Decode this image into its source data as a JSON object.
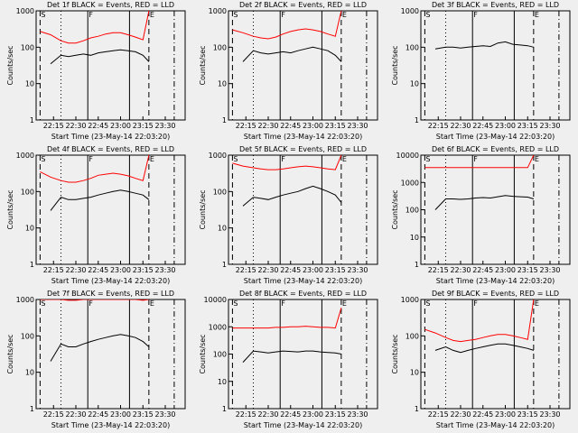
{
  "axes": {
    "xlabel": "Start Time (23-May-14 22:03:20)",
    "ylabel": "Counts/sec",
    "xlim": [
      3.33,
      103.33
    ],
    "xticks": [
      {
        "value": 15,
        "label": "22:15"
      },
      {
        "value": 30,
        "label": "22:30"
      },
      {
        "value": 45,
        "label": "22:45"
      },
      {
        "value": 60,
        "label": "23:00"
      },
      {
        "value": 75,
        "label": "23:15"
      },
      {
        "value": 90,
        "label": "23:30"
      }
    ],
    "log_y": true,
    "markers": [
      {
        "x": 6,
        "style": "dashed",
        "label": "S"
      },
      {
        "x": 20,
        "style": "dotted"
      },
      {
        "x": 38,
        "style": "solid",
        "label": "F"
      },
      {
        "x": 66,
        "style": "solid"
      },
      {
        "x": 79,
        "style": "dashed",
        "label": "E"
      },
      {
        "x": 96,
        "style": "dashdot"
      }
    ]
  },
  "chart_data": [
    {
      "type": "line",
      "title": "Det 1f BLACK = Events, RED = LLD",
      "ylim": [
        1,
        1000
      ],
      "yticks": [
        1,
        10,
        100,
        1000
      ],
      "x": [
        6,
        13,
        20,
        25,
        30,
        35,
        40,
        45,
        50,
        55,
        60,
        65,
        70,
        75,
        79
      ],
      "series": [
        {
          "color": "#000000",
          "values": [
            null,
            35,
            60,
            55,
            60,
            65,
            60,
            70,
            75,
            80,
            85,
            80,
            75,
            60,
            40
          ]
        },
        {
          "color": "#ff0000",
          "values": [
            270,
            220,
            150,
            130,
            130,
            150,
            180,
            200,
            230,
            250,
            250,
            220,
            190,
            160,
            1000
          ]
        }
      ]
    },
    {
      "type": "line",
      "title": "Det 2f BLACK = Events, RED = LLD",
      "ylim": [
        1,
        1000
      ],
      "yticks": [
        1,
        10,
        100,
        1000
      ],
      "x": [
        6,
        13,
        20,
        25,
        30,
        35,
        40,
        45,
        50,
        55,
        60,
        65,
        70,
        75,
        79
      ],
      "series": [
        {
          "color": "#000000",
          "values": [
            null,
            40,
            80,
            70,
            65,
            70,
            75,
            70,
            80,
            90,
            100,
            90,
            80,
            60,
            40
          ]
        },
        {
          "color": "#ff0000",
          "values": [
            300,
            250,
            200,
            180,
            170,
            190,
            230,
            270,
            300,
            320,
            300,
            270,
            230,
            200,
            1000
          ]
        }
      ]
    },
    {
      "type": "line",
      "title": "Det 3f BLACK = Events, RED = LLD",
      "ylim": [
        1,
        1000
      ],
      "yticks": [
        1,
        10,
        100,
        1000
      ],
      "x": [
        6,
        13,
        20,
        25,
        30,
        35,
        40,
        45,
        50,
        55,
        60,
        65,
        70,
        75,
        79
      ],
      "series": [
        {
          "color": "#000000",
          "values": [
            null,
            90,
            100,
            100,
            95,
            100,
            105,
            110,
            105,
            130,
            140,
            120,
            115,
            110,
            100
          ]
        }
      ]
    },
    {
      "type": "line",
      "title": "Det 4f BLACK = Events, RED = LLD",
      "ylim": [
        1,
        1000
      ],
      "yticks": [
        1,
        10,
        100,
        1000
      ],
      "x": [
        6,
        13,
        20,
        25,
        30,
        35,
        40,
        45,
        50,
        55,
        60,
        65,
        70,
        75,
        79
      ],
      "series": [
        {
          "color": "#000000",
          "values": [
            null,
            30,
            70,
            60,
            60,
            65,
            70,
            80,
            90,
            100,
            110,
            100,
            90,
            80,
            60
          ]
        },
        {
          "color": "#ff0000",
          "values": [
            350,
            250,
            200,
            180,
            180,
            200,
            230,
            280,
            300,
            320,
            300,
            270,
            230,
            200,
            1000
          ]
        }
      ]
    },
    {
      "type": "line",
      "title": "Det 5f BLACK = Events, RED = LLD",
      "ylim": [
        1,
        1000
      ],
      "yticks": [
        1,
        10,
        100,
        1000
      ],
      "x": [
        6,
        13,
        20,
        25,
        30,
        35,
        40,
        45,
        50,
        55,
        60,
        65,
        70,
        75,
        79
      ],
      "series": [
        {
          "color": "#000000",
          "values": [
            null,
            40,
            70,
            65,
            60,
            70,
            80,
            90,
            100,
            120,
            140,
            120,
            100,
            80,
            50
          ]
        },
        {
          "color": "#ff0000",
          "values": [
            600,
            500,
            450,
            420,
            400,
            400,
            420,
            450,
            480,
            500,
            480,
            450,
            420,
            400,
            1000
          ]
        }
      ]
    },
    {
      "type": "line",
      "title": "Det 6f BLACK = Events, RED = LLD",
      "ylim": [
        1,
        10000
      ],
      "yticks": [
        1,
        10,
        100,
        1000,
        10000
      ],
      "x": [
        6,
        13,
        20,
        25,
        30,
        35,
        40,
        45,
        50,
        55,
        60,
        65,
        70,
        75,
        79
      ],
      "series": [
        {
          "color": "#000000",
          "values": [
            null,
            100,
            250,
            250,
            240,
            250,
            270,
            280,
            270,
            300,
            330,
            310,
            300,
            290,
            250
          ]
        },
        {
          "color": "#ff0000",
          "values": [
            3500,
            3500,
            3500,
            3500,
            3500,
            3500,
            3500,
            3500,
            3500,
            3500,
            3500,
            3500,
            3500,
            3500,
            10000
          ]
        }
      ]
    },
    {
      "type": "line",
      "title": "Det 7f BLACK = Events, RED = LLD",
      "ylim": [
        1,
        1000
      ],
      "yticks": [
        1,
        10,
        100,
        1000
      ],
      "x": [
        6,
        13,
        20,
        25,
        30,
        35,
        40,
        45,
        50,
        55,
        60,
        65,
        70,
        75,
        79
      ],
      "series": [
        {
          "color": "#000000",
          "values": [
            null,
            20,
            60,
            50,
            50,
            60,
            70,
            80,
            90,
            100,
            110,
            100,
            90,
            70,
            50
          ]
        },
        {
          "color": "#ff0000",
          "values": [
            1000,
            1000,
            1000,
            950,
            950,
            1000,
            1000,
            1000,
            1000,
            1000,
            1000,
            1000,
            1000,
            950,
            1000
          ]
        }
      ]
    },
    {
      "type": "line",
      "title": "Det 8f BLACK = Events, RED = LLD",
      "ylim": [
        1,
        10000
      ],
      "yticks": [
        1,
        10,
        100,
        1000,
        10000
      ],
      "x": [
        6,
        13,
        20,
        25,
        30,
        35,
        40,
        45,
        50,
        55,
        60,
        65,
        70,
        75,
        79
      ],
      "series": [
        {
          "color": "#000000",
          "values": [
            null,
            50,
            130,
            120,
            110,
            120,
            130,
            125,
            120,
            130,
            130,
            120,
            115,
            110,
            100
          ]
        },
        {
          "color": "#ff0000",
          "values": [
            900,
            900,
            900,
            900,
            900,
            950,
            950,
            1000,
            1000,
            1050,
            1000,
            950,
            950,
            900,
            5000
          ]
        }
      ]
    },
    {
      "type": "line",
      "title": "Det 9f BLACK = Events, RED = LLD",
      "ylim": [
        1,
        1000
      ],
      "yticks": [
        1,
        10,
        100,
        1000
      ],
      "x": [
        6,
        13,
        20,
        25,
        30,
        35,
        40,
        45,
        50,
        55,
        60,
        65,
        70,
        75,
        79
      ],
      "series": [
        {
          "color": "#000000",
          "values": [
            null,
            40,
            50,
            40,
            35,
            40,
            45,
            50,
            55,
            60,
            60,
            55,
            50,
            45,
            40
          ]
        },
        {
          "color": "#ff0000",
          "values": [
            150,
            120,
            90,
            75,
            70,
            75,
            80,
            90,
            100,
            110,
            110,
            100,
            90,
            80,
            1000
          ]
        }
      ]
    }
  ]
}
